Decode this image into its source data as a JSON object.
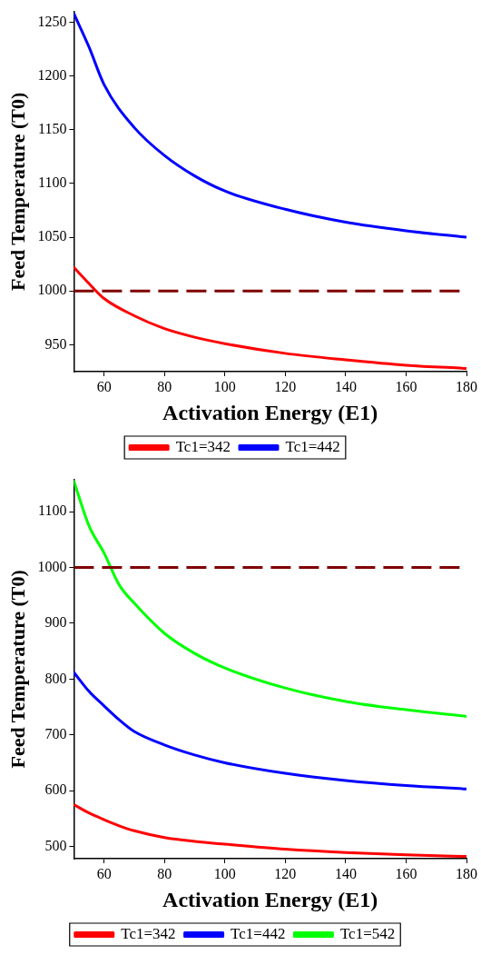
{
  "chart_data": [
    {
      "type": "line",
      "xlabel": "Activation Energy (E1)",
      "ylabel": "Feed Temperature (T0)",
      "x": [
        50,
        55,
        60,
        70,
        80,
        90,
        100,
        120,
        140,
        160,
        180
      ],
      "xlim": [
        50,
        180
      ],
      "xticks": [
        60,
        80,
        100,
        120,
        140,
        160,
        180
      ],
      "ylim": [
        925,
        1260
      ],
      "yticks": [
        950,
        1000,
        1050,
        1100,
        1150,
        1200,
        1250
      ],
      "grid": false,
      "legend": "bottom",
      "marker": "none",
      "line_style": "solid",
      "series": [
        {
          "name": "Tc1=342",
          "color": "#ff0000",
          "values": [
            1022,
            1007,
            993,
            977,
            965,
            957,
            951,
            942,
            936,
            931,
            928
          ]
        },
        {
          "name": "Tc1=442",
          "color": "#0000ff",
          "values": [
            1258,
            1227,
            1192,
            1152,
            1126,
            1107,
            1093,
            1076,
            1064,
            1056,
            1050
          ]
        }
      ],
      "ref_lines": [
        {
          "axis": "y",
          "value": 1000,
          "label": null,
          "color": "#7f0000",
          "line_style": "dashed"
        }
      ]
    },
    {
      "type": "line",
      "xlabel": "Activation Energy (E1)",
      "ylabel": "Feed Temperature (T0)",
      "x": [
        50,
        55,
        60,
        65,
        70,
        80,
        90,
        100,
        120,
        140,
        160,
        180
      ],
      "xlim": [
        50,
        180
      ],
      "xticks": [
        60,
        80,
        100,
        120,
        140,
        160,
        180
      ],
      "ylim": [
        478,
        1158
      ],
      "yticks": [
        500,
        600,
        700,
        800,
        900,
        1000,
        1100
      ],
      "grid": false,
      "legend": "bottom",
      "marker": "none",
      "line_style": "solid",
      "series": [
        {
          "name": "Tc1=342",
          "color": "#ff0000",
          "values": [
            575,
            560,
            548,
            537,
            528,
            516,
            509,
            504,
            495,
            489,
            485,
            482
          ]
        },
        {
          "name": "Tc1=442",
          "color": "#0000ff",
          "values": [
            812,
            778,
            752,
            727,
            706,
            682,
            664,
            650,
            631,
            618,
            609,
            603
          ]
        },
        {
          "name": "Tc1=542",
          "color": "#00ff00",
          "values": [
            1155,
            1075,
            1026,
            969,
            936,
            882,
            846,
            820,
            784,
            760,
            745,
            733
          ]
        }
      ],
      "ref_lines": [
        {
          "axis": "y",
          "value": 1000,
          "label": null,
          "color": "#7f0000",
          "line_style": "dashed"
        }
      ]
    }
  ]
}
